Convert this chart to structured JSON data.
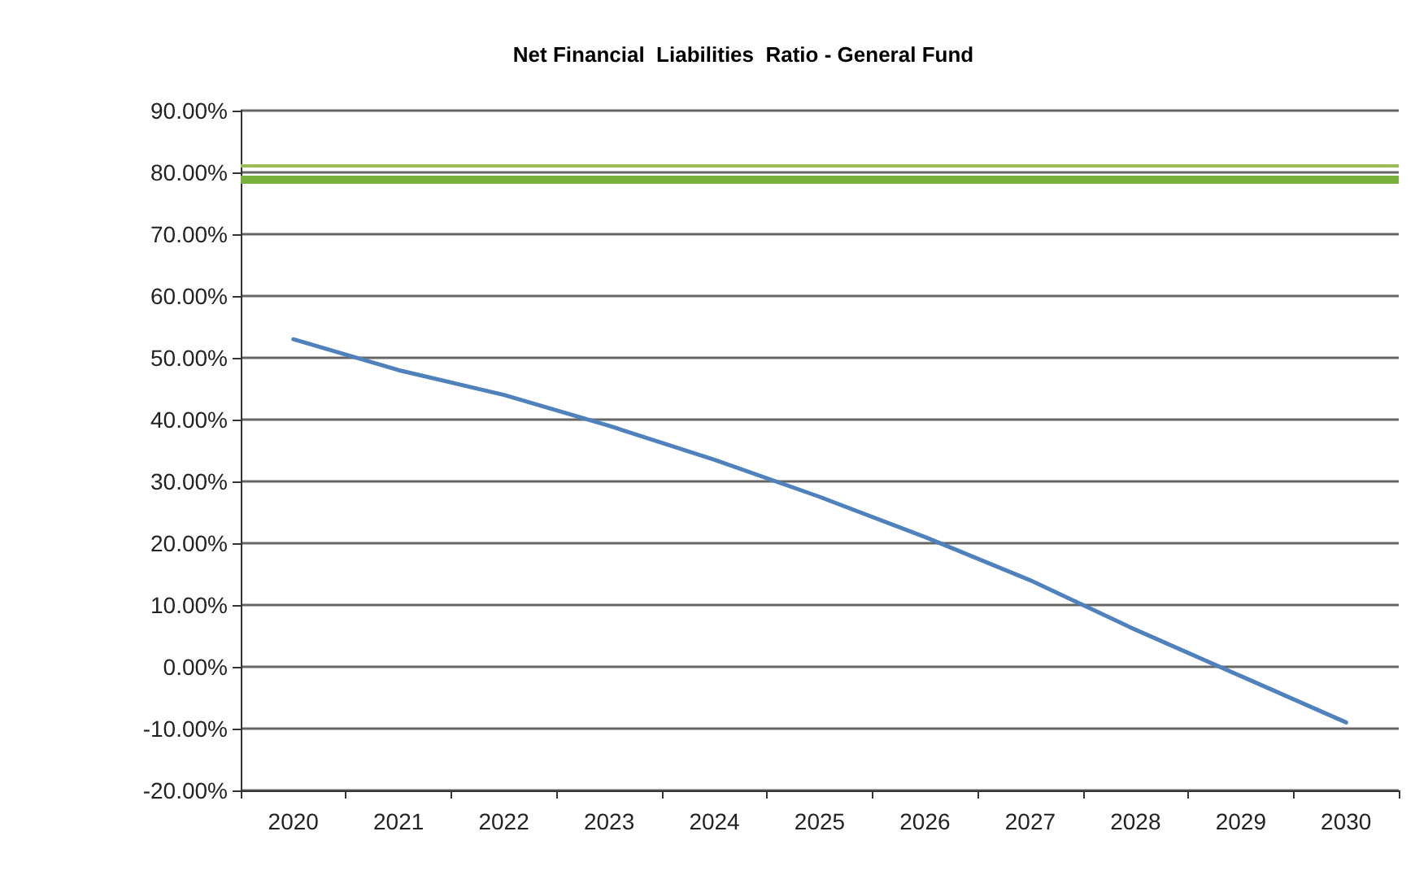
{
  "chart_data": {
    "type": "line",
    "title": "Net Financial  Liabilities  Ratio - General Fund",
    "categories": [
      "2020",
      "2021",
      "2022",
      "2023",
      "2024",
      "2025",
      "2026",
      "2027",
      "2028",
      "2029",
      "2030"
    ],
    "series": [
      {
        "color": "#4f81bd",
        "values": [
          53,
          48,
          44,
          39,
          33.5,
          27.5,
          21,
          14,
          6,
          -1.5,
          -9
        ]
      }
    ],
    "ylim": [
      -20,
      90
    ],
    "yticks": [
      {
        "value": -20,
        "label": "-20.00%"
      },
      {
        "value": -10,
        "label": "-10.00%"
      },
      {
        "value": 0,
        "label": "0.00%"
      },
      {
        "value": 10,
        "label": "10.00%"
      },
      {
        "value": 20,
        "label": "20.00%"
      },
      {
        "value": 30,
        "label": "30.00%"
      },
      {
        "value": 40,
        "label": "40.00%"
      },
      {
        "value": 50,
        "label": "50.00%"
      },
      {
        "value": 60,
        "label": "60.00%"
      },
      {
        "value": 70,
        "label": "70.00%"
      },
      {
        "value": 80,
        "label": "80.00%"
      },
      {
        "value": 90,
        "label": "90.00%"
      }
    ],
    "ref_lines": [
      {
        "axis": "y",
        "value": 81,
        "color": "#9bbb59"
      },
      {
        "axis": "y",
        "value": 79,
        "color": "#77b03a"
      }
    ],
    "grid": "y",
    "marker": "none",
    "line_style": "solid"
  }
}
